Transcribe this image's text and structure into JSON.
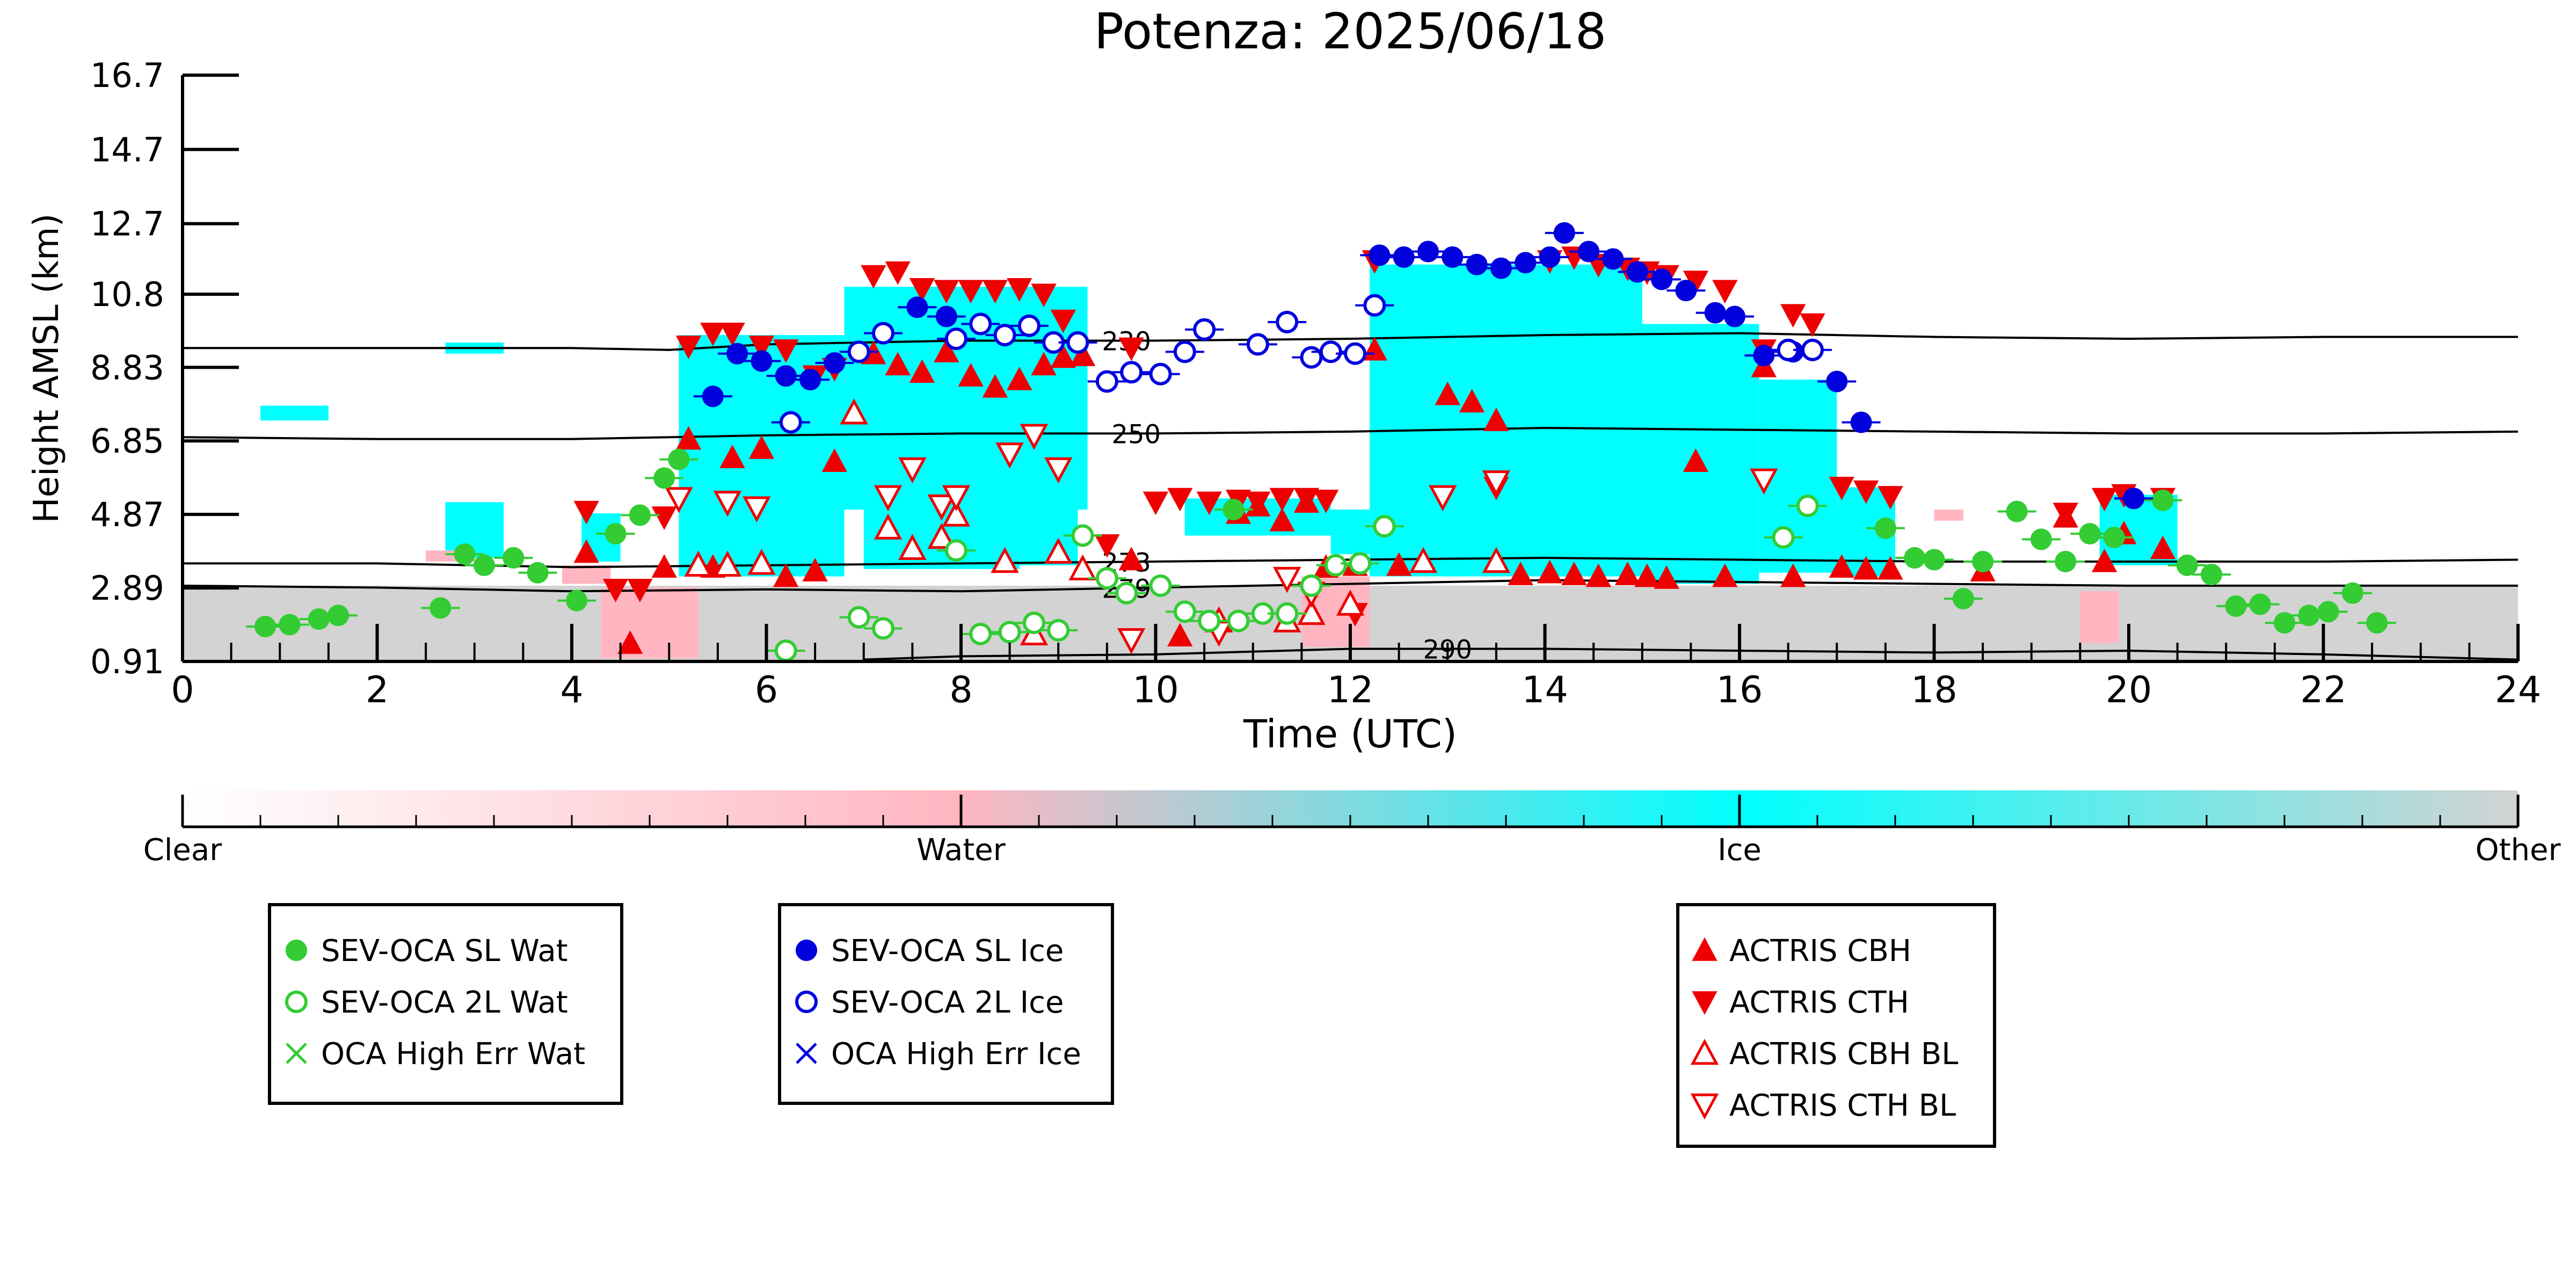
{
  "chart_data": {
    "type": "scatter",
    "title": "Potenza: 2025/06/18",
    "xlabel": "Time (UTC)",
    "ylabel": "Height AMSL (km)",
    "xlim": [
      0,
      24
    ],
    "ylim": [
      0.91,
      16.7
    ],
    "x_ticks": [
      "0",
      "2",
      "4",
      "6",
      "8",
      "10",
      "12",
      "14",
      "16",
      "18",
      "20",
      "22",
      "24"
    ],
    "y_ticks": [
      "0.91",
      "2.89",
      "4.87",
      "6.85",
      "8.83",
      "10.8",
      "12.7",
      "14.7",
      "16.7"
    ],
    "grid": false,
    "colorbar": {
      "labels": [
        "Clear",
        "Water",
        "Ice",
        "Other"
      ],
      "colors": {
        "clear": "#ffffff",
        "water": "#ffb6c1",
        "ice": "#00ffff",
        "other": "#d3d3d3"
      }
    },
    "isotherms": [
      {
        "label": "230",
        "x": [
          0,
          4,
          5,
          6,
          8,
          10,
          12,
          14,
          16,
          18,
          20,
          22,
          24
        ],
        "y": [
          9.35,
          9.35,
          9.3,
          9.45,
          9.55,
          9.55,
          9.6,
          9.7,
          9.75,
          9.65,
          9.6,
          9.65,
          9.65
        ]
      },
      {
        "label": "250",
        "x": [
          0,
          2,
          4,
          6,
          8,
          10,
          12,
          14,
          16,
          18,
          20,
          22,
          24
        ],
        "y": [
          6.95,
          6.9,
          6.9,
          7.0,
          7.05,
          7.05,
          7.1,
          7.2,
          7.15,
          7.1,
          7.05,
          7.05,
          7.1
        ]
      },
      {
        "label": "273",
        "x": [
          0,
          2,
          4,
          6,
          8,
          10,
          12,
          14,
          16,
          18,
          20,
          22,
          24
        ],
        "y": [
          3.55,
          3.55,
          3.45,
          3.5,
          3.55,
          3.6,
          3.65,
          3.7,
          3.65,
          3.6,
          3.6,
          3.6,
          3.65
        ]
      },
      {
        "label": "279",
        "x": [
          0,
          2,
          4,
          6,
          8,
          10,
          12,
          14,
          16,
          18,
          20,
          22,
          24
        ],
        "y": [
          2.95,
          2.9,
          2.8,
          2.85,
          2.8,
          2.9,
          3.0,
          3.1,
          3.05,
          3.0,
          2.95,
          2.95,
          2.95
        ]
      },
      {
        "label": "290",
        "x": [
          7,
          8,
          10,
          12,
          14,
          16,
          18,
          20,
          22,
          24
        ],
        "y": [
          0.96,
          1.05,
          1.1,
          1.25,
          1.25,
          1.2,
          1.15,
          1.2,
          1.1,
          0.96
        ]
      }
    ],
    "cloud_regions": [
      {
        "category": "other",
        "x0": 0,
        "x1": 24,
        "y0": 0.91,
        "y1": 2.95
      },
      {
        "category": "water",
        "x0": 4.3,
        "x1": 5.3,
        "y0": 1.0,
        "y1": 2.9
      },
      {
        "category": "water",
        "x0": 11.5,
        "x1": 12.2,
        "y0": 1.3,
        "y1": 3.2
      },
      {
        "category": "water",
        "x0": 19.5,
        "x1": 19.9,
        "y0": 1.4,
        "y1": 2.8
      },
      {
        "category": "water",
        "x0": 3.9,
        "x1": 4.4,
        "y0": 3.0,
        "y1": 3.5
      },
      {
        "category": "ice",
        "x0": 5.1,
        "x1": 6.8,
        "y0": 3.2,
        "y1": 9.7
      },
      {
        "category": "ice",
        "x0": 6.8,
        "x1": 9.3,
        "y0": 5.0,
        "y1": 11.0
      },
      {
        "category": "ice",
        "x0": 7.0,
        "x1": 8.6,
        "y0": 3.4,
        "y1": 5.5
      },
      {
        "category": "ice",
        "x0": 8.6,
        "x1": 9.2,
        "y0": 3.5,
        "y1": 6.0
      },
      {
        "category": "ice",
        "x0": 12.2,
        "x1": 15.0,
        "y0": 3.2,
        "y1": 11.6
      },
      {
        "category": "ice",
        "x0": 15.0,
        "x1": 16.2,
        "y0": 3.0,
        "y1": 10.0
      },
      {
        "category": "ice",
        "x0": 16.2,
        "x1": 17.0,
        "y0": 3.3,
        "y1": 8.5
      },
      {
        "category": "ice",
        "x0": 17.0,
        "x1": 17.6,
        "y0": 3.2,
        "y1": 5.6
      },
      {
        "category": "ice",
        "x0": 4.1,
        "x1": 4.5,
        "y0": 3.6,
        "y1": 4.9
      },
      {
        "category": "ice",
        "x0": 10.3,
        "x1": 11.8,
        "y0": 4.3,
        "y1": 5.3
      },
      {
        "category": "ice",
        "x0": 11.8,
        "x1": 12.2,
        "y0": 3.8,
        "y1": 5.0
      },
      {
        "category": "ice",
        "x0": 2.7,
        "x1": 3.3,
        "y0": 3.7,
        "y1": 5.2
      },
      {
        "category": "ice",
        "x0": 19.7,
        "x1": 20.5,
        "y0": 3.5,
        "y1": 5.4
      },
      {
        "category": "ice",
        "x0": 16.9,
        "x1": 17.3,
        "y0": 3.3,
        "y1": 4.5
      },
      {
        "category": "ice",
        "x0": 2.7,
        "x1": 3.3,
        "y0": 9.2,
        "y1": 9.5
      },
      {
        "category": "ice",
        "x0": 0.8,
        "x1": 1.5,
        "y0": 7.4,
        "y1": 7.8
      },
      {
        "category": "water",
        "x0": 18.0,
        "x1": 18.3,
        "y0": 4.7,
        "y1": 5.0
      },
      {
        "category": "water",
        "x0": 2.5,
        "x1": 3.0,
        "y0": 3.6,
        "y1": 3.9
      }
    ],
    "series": [
      {
        "name": "SEV-OCA SL Wat",
        "marker": "circle-filled",
        "color": "#33cc33",
        "x": [
          0.85,
          1.1,
          1.4,
          1.6,
          2.65,
          2.9,
          3.1,
          3.4,
          3.65,
          4.05,
          4.45,
          4.7,
          4.95,
          5.1,
          10.8,
          17.5,
          17.8,
          18.0,
          18.3,
          18.5,
          18.85,
          19.1,
          19.35,
          19.6,
          19.85,
          20.35,
          20.6,
          20.85,
          21.1,
          21.35,
          21.6,
          21.85,
          22.05,
          22.3,
          22.55
        ],
        "y": [
          1.85,
          1.9,
          2.05,
          2.15,
          2.35,
          3.8,
          3.5,
          3.7,
          3.3,
          2.55,
          4.35,
          4.85,
          5.85,
          6.35,
          5.0,
          4.5,
          3.7,
          3.65,
          2.6,
          3.6,
          4.95,
          4.2,
          3.6,
          4.35,
          4.25,
          5.25,
          3.5,
          3.25,
          2.4,
          2.45,
          1.95,
          2.15,
          2.25,
          2.75,
          1.95
        ]
      },
      {
        "name": "SEV-OCA 2L Wat",
        "marker": "circle-open",
        "color": "#33cc33",
        "x": [
          6.2,
          6.95,
          7.2,
          7.95,
          8.2,
          8.5,
          8.75,
          9.0,
          9.25,
          9.5,
          9.7,
          10.05,
          10.3,
          10.55,
          10.85,
          11.1,
          11.35,
          11.6,
          11.85,
          12.1,
          12.35,
          16.45,
          16.7
        ],
        "y": [
          1.2,
          2.1,
          1.8,
          3.9,
          1.65,
          1.7,
          1.95,
          1.75,
          4.3,
          3.15,
          2.75,
          2.95,
          2.25,
          2.0,
          2.0,
          2.2,
          2.2,
          2.95,
          3.5,
          3.55,
          4.55,
          4.25,
          5.1
        ]
      },
      {
        "name": "OCA High Err Wat",
        "marker": "x",
        "color": "#33cc33",
        "x": [],
        "y": []
      },
      {
        "name": "SEV-OCA SL Ice",
        "marker": "circle-filled",
        "color": "#0000dd",
        "x": [
          5.45,
          5.7,
          5.95,
          6.2,
          6.45,
          6.7,
          7.55,
          7.85,
          12.3,
          12.55,
          12.8,
          13.05,
          13.3,
          13.55,
          13.8,
          14.05,
          14.2,
          14.45,
          14.7,
          14.95,
          15.2,
          15.45,
          15.75,
          15.95,
          16.25,
          16.55,
          17.0,
          17.25,
          20.05
        ],
        "y": [
          8.05,
          9.2,
          9.0,
          8.6,
          8.5,
          8.95,
          10.45,
          10.2,
          11.85,
          11.8,
          11.95,
          11.8,
          11.6,
          11.5,
          11.65,
          11.8,
          12.45,
          11.95,
          11.75,
          11.4,
          11.2,
          10.9,
          10.3,
          10.2,
          9.15,
          9.25,
          8.45,
          7.35,
          5.3
        ]
      },
      {
        "name": "SEV-OCA 2L Ice",
        "marker": "circle-open",
        "color": "#0000dd",
        "x": [
          6.25,
          6.95,
          7.2,
          7.95,
          8.2,
          8.45,
          8.7,
          8.95,
          9.2,
          9.5,
          9.75,
          10.05,
          10.3,
          10.5,
          11.05,
          11.35,
          11.6,
          11.8,
          12.05,
          12.25,
          16.5,
          16.75
        ],
        "y": [
          7.35,
          9.25,
          9.75,
          9.6,
          10.0,
          9.7,
          9.95,
          9.5,
          9.5,
          8.45,
          8.7,
          8.65,
          9.25,
          9.85,
          9.45,
          10.05,
          9.1,
          9.25,
          9.2,
          10.5,
          9.3,
          9.3
        ]
      },
      {
        "name": "OCA High Err Ice",
        "marker": "x",
        "color": "#0000dd",
        "x": [],
        "y": []
      },
      {
        "name": "ACTRIS CBH",
        "marker": "triangle-up-filled",
        "color": "#ee0000",
        "x": [
          4.15,
          4.6,
          4.95,
          5.2,
          5.45,
          5.65,
          5.95,
          6.2,
          6.5,
          6.7,
          7.1,
          7.35,
          7.6,
          7.85,
          8.1,
          8.35,
          8.6,
          8.85,
          9.05,
          9.25,
          9.75,
          10.25,
          10.85,
          11.05,
          11.3,
          11.55,
          11.75,
          12.05,
          12.25,
          12.5,
          12.75,
          13.0,
          13.25,
          13.5,
          13.75,
          14.05,
          14.3,
          14.55,
          14.85,
          15.05,
          15.25,
          15.55,
          15.85,
          16.25,
          16.55,
          17.05,
          17.3,
          17.55,
          18.5,
          19.35,
          19.75,
          19.95,
          20.35
        ],
        "y": [
          3.85,
          1.4,
          3.45,
          6.9,
          3.45,
          6.4,
          6.65,
          3.2,
          3.35,
          6.3,
          9.2,
          8.9,
          8.7,
          9.25,
          8.6,
          8.3,
          8.5,
          8.9,
          9.1,
          9.15,
          3.65,
          1.6,
          4.9,
          5.1,
          4.7,
          5.2,
          3.45,
          3.5,
          9.3,
          3.5,
          3.6,
          8.1,
          7.9,
          7.4,
          3.25,
          3.3,
          3.25,
          3.2,
          3.25,
          3.2,
          3.15,
          6.3,
          3.2,
          8.85,
          3.2,
          3.45,
          3.4,
          3.4,
          3.35,
          4.8,
          3.6,
          4.35,
          3.95
        ]
      },
      {
        "name": "ACTRIS CTH",
        "marker": "triangle-down-filled",
        "color": "#ee0000",
        "x": [
          4.15,
          4.45,
          4.7,
          4.95,
          5.2,
          5.45,
          5.65,
          5.95,
          6.2,
          6.5,
          6.7,
          7.1,
          7.35,
          7.6,
          7.85,
          8.1,
          8.35,
          8.6,
          8.85,
          9.05,
          9.5,
          9.75,
          10.0,
          10.25,
          10.55,
          10.85,
          11.05,
          11.3,
          11.55,
          11.75,
          12.05,
          12.25,
          13.5,
          14.05,
          14.3,
          14.55,
          14.85,
          15.05,
          15.25,
          15.55,
          15.85,
          16.25,
          16.55,
          16.75,
          17.05,
          17.3,
          17.55,
          19.35,
          19.75,
          19.95,
          20.35
        ],
        "y": [
          4.95,
          2.85,
          2.85,
          4.8,
          9.4,
          9.75,
          9.75,
          9.4,
          9.3,
          8.6,
          8.8,
          11.3,
          11.4,
          10.95,
          10.9,
          10.9,
          10.9,
          10.95,
          10.8,
          10.1,
          4.05,
          9.35,
          5.2,
          5.3,
          5.2,
          5.25,
          5.2,
          5.3,
          5.3,
          5.25,
          2.2,
          11.7,
          5.6,
          11.7,
          11.8,
          11.6,
          11.5,
          11.4,
          11.3,
          11.15,
          10.9,
          9.3,
          10.25,
          10.0,
          5.6,
          5.5,
          5.35,
          4.9,
          5.3,
          5.4,
          5.3
        ]
      },
      {
        "name": "ACTRIS CBH BL",
        "marker": "triangle-up-open",
        "color": "#ee0000",
        "x": [
          5.3,
          5.6,
          5.95,
          6.9,
          7.25,
          7.5,
          7.8,
          7.95,
          8.45,
          8.75,
          9.0,
          9.25,
          10.65,
          11.35,
          11.6,
          12.0,
          12.75,
          13.5
        ],
        "y": [
          3.5,
          3.5,
          3.55,
          7.6,
          4.5,
          3.95,
          4.25,
          4.85,
          3.6,
          1.65,
          3.85,
          3.4,
          2.0,
          2.0,
          2.2,
          2.45,
          3.6,
          3.6
        ],
        "note": "approximate positions"
      },
      {
        "name": "ACTRIS CTH BL",
        "marker": "triangle-down-open",
        "color": "#ee0000",
        "x": [
          5.1,
          5.6,
          5.9,
          7.25,
          7.5,
          7.8,
          7.95,
          8.5,
          8.75,
          9.0,
          9.75,
          10.65,
          11.35,
          11.6,
          12.95,
          13.5,
          16.25
        ],
        "y": [
          5.3,
          5.2,
          5.05,
          5.35,
          6.1,
          5.1,
          5.35,
          6.5,
          7.0,
          6.1,
          1.5,
          1.7,
          3.15,
          2.75,
          5.35,
          5.75,
          5.8
        ]
      }
    ],
    "legend": {
      "groups": [
        [
          "SEV-OCA SL Wat",
          "SEV-OCA 2L Wat",
          "OCA High Err Wat"
        ],
        [
          "SEV-OCA SL Ice",
          "SEV-OCA 2L Ice",
          "OCA High Err Ice"
        ],
        [
          "ACTRIS CBH",
          "ACTRIS CTH",
          "ACTRIS CBH BL",
          "ACTRIS CTH BL"
        ]
      ],
      "placement": "bottom"
    }
  }
}
